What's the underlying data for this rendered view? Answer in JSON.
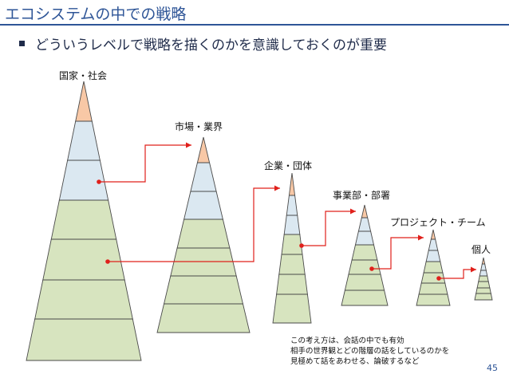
{
  "slide": {
    "title": "エコシステムの中での戦略",
    "bullet": "どういうレベルで戦略を描くのかを意識しておくのが重要",
    "page_number": "45"
  },
  "pyramids": [
    {
      "label": "国家・社会"
    },
    {
      "label": "市場・業界"
    },
    {
      "label": "企業・団体"
    },
    {
      "label": "事業部・部署"
    },
    {
      "label": "プロジェクト・チーム"
    },
    {
      "label": "個人"
    }
  ],
  "note": {
    "lines": [
      "この考え方は、会話の中でも有効",
      "相手の世界観とどの階層の話をしているのかを",
      "見極めて話をあわせる、論破するなど"
    ]
  },
  "colors": {
    "top_band": "#f8c8a6",
    "middle_band": "#dbe8f1",
    "lower_band": "#d7e4bf",
    "outline": "#4a4a4a",
    "connector": "#e0201b",
    "accent": "#2e5597"
  }
}
